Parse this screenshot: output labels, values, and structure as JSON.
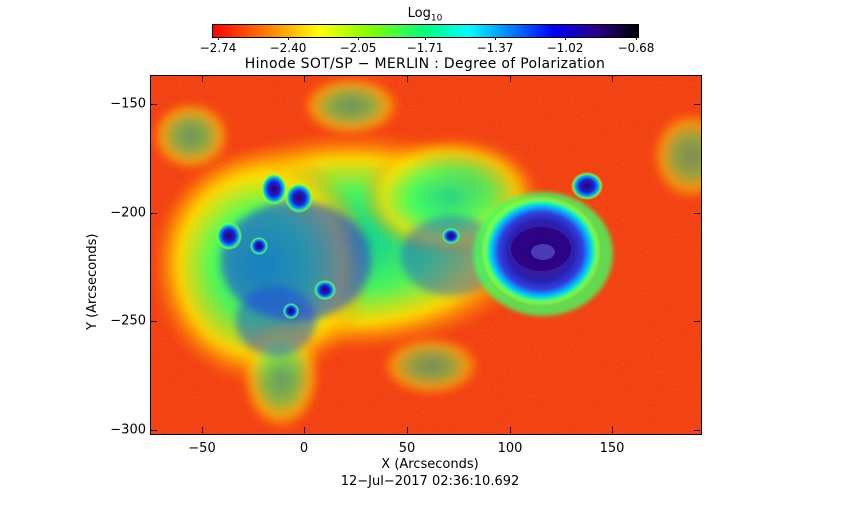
{
  "colorbar": {
    "title": "Log",
    "title_sub": "10",
    "ticks": [
      "−2.74",
      "−2.40",
      "−2.05",
      "−1.71",
      "−1.37",
      "−1.02",
      "−0.68"
    ],
    "colors": [
      "#ff0000",
      "#ff8000",
      "#ffff00",
      "#00ff80",
      "#00ffff",
      "#0000ff",
      "#2a008a",
      "#000000"
    ]
  },
  "plot": {
    "title": "Hinode SOT/SP − MERLIN : Degree of Polarization",
    "xlabel": "X (Arcseconds)",
    "ylabel": "Y (Arcseconds)",
    "xticks": [
      "−50",
      "0",
      "50",
      "100",
      "150"
    ],
    "yticks": [
      "−150",
      "−200",
      "−250",
      "−300"
    ],
    "timestamp": "12−Jul−2017 02:36:10.692"
  }
}
